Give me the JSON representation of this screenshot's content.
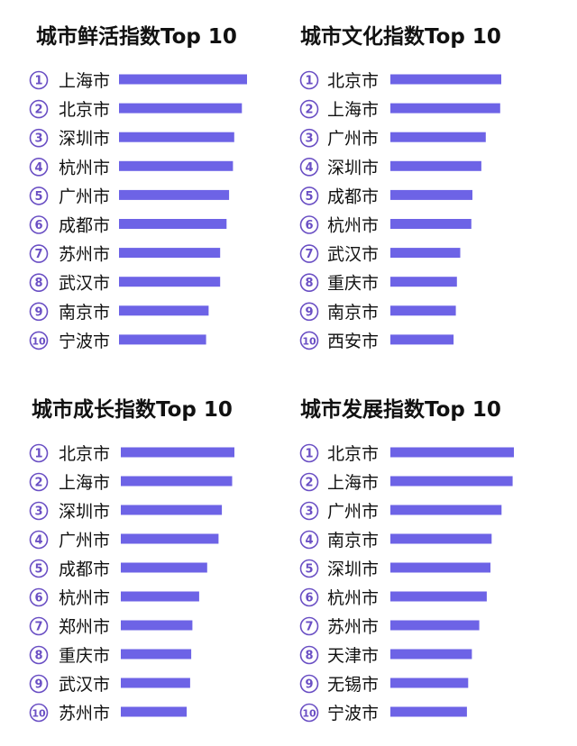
{
  "colors": {
    "bar": "#6d63e6",
    "circle": "#6a4fc4",
    "text": "#111111"
  },
  "chart_data": [
    {
      "type": "bar",
      "orientation": "horizontal",
      "title": "城市鲜活指数Top 10",
      "ranks": [
        "1",
        "2",
        "3",
        "4",
        "5",
        "6",
        "7",
        "8",
        "9",
        "10"
      ],
      "categories": [
        "上海市",
        "北京市",
        "深圳市",
        "杭州市",
        "广州市",
        "成都市",
        "苏州市",
        "武汉市",
        "南京市",
        "宁波市"
      ],
      "values": [
        100,
        96,
        90,
        89,
        86,
        84,
        79,
        79,
        70,
        68
      ],
      "xlim": [
        0,
        100
      ],
      "grid": false,
      "legend": "none"
    },
    {
      "type": "bar",
      "orientation": "horizontal",
      "title": "城市文化指数Top 10",
      "ranks": [
        "1",
        "2",
        "3",
        "4",
        "5",
        "6",
        "7",
        "8",
        "9",
        "10"
      ],
      "categories": [
        "北京市",
        "上海市",
        "广州市",
        "深圳市",
        "成都市",
        "杭州市",
        "武汉市",
        "重庆市",
        "南京市",
        "西安市"
      ],
      "values": [
        100,
        99,
        86,
        82,
        74,
        73,
        63,
        60,
        59,
        57
      ],
      "xlim": [
        0,
        100
      ],
      "grid": false,
      "legend": "none"
    },
    {
      "type": "bar",
      "orientation": "horizontal",
      "title": "城市成长指数Top 10",
      "ranks": [
        "1",
        "2",
        "3",
        "4",
        "5",
        "6",
        "7",
        "8",
        "9",
        "10"
      ],
      "categories": [
        "北京市",
        "上海市",
        "深圳市",
        "广州市",
        "成都市",
        "杭州市",
        "郑州市",
        "重庆市",
        "武汉市",
        "苏州市"
      ],
      "values": [
        100,
        98,
        89,
        86,
        76,
        69,
        63,
        62,
        61,
        58
      ],
      "xlim": [
        0,
        100
      ],
      "grid": false,
      "legend": "none"
    },
    {
      "type": "bar",
      "orientation": "horizontal",
      "title": "城市发展指数Top 10",
      "ranks": [
        "1",
        "2",
        "3",
        "4",
        "5",
        "6",
        "7",
        "8",
        "9",
        "10"
      ],
      "categories": [
        "北京市",
        "上海市",
        "广州市",
        "南京市",
        "深圳市",
        "杭州市",
        "苏州市",
        "天津市",
        "无锡市",
        "宁波市"
      ],
      "values": [
        100,
        99,
        90,
        82,
        81,
        78,
        72,
        66,
        63,
        62
      ],
      "xlim": [
        0,
        100
      ],
      "grid": false,
      "legend": "none"
    }
  ]
}
